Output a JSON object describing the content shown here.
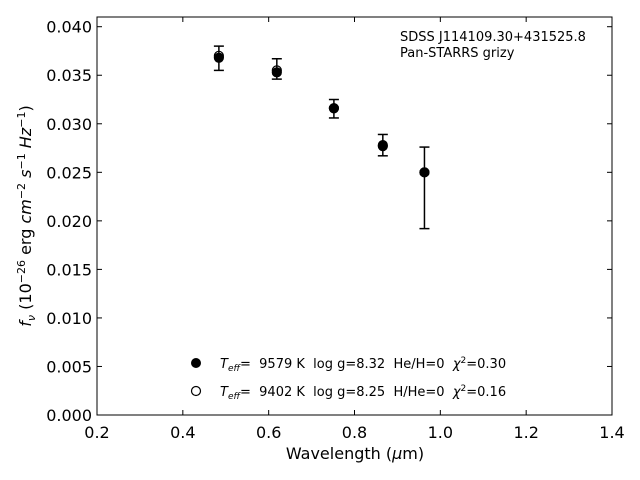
{
  "chart_data": {
    "type": "scatter",
    "annotation": [
      "SDSS J114109.30+431525.8",
      "Pan-STARRS grizy"
    ],
    "xlabel": "Wavelength (μm)",
    "ylabel": "fν (10⁻²⁶ erg cm⁻² s⁻¹ Hz⁻¹)",
    "xlim": [
      0.2,
      1.4
    ],
    "ylim": [
      0.0,
      0.041
    ],
    "xticks": [
      "0.2",
      "0.4",
      "0.6",
      "0.8",
      "1.0",
      "1.2",
      "1.4"
    ],
    "yticks": [
      "0.000",
      "0.005",
      "0.010",
      "0.015",
      "0.020",
      "0.025",
      "0.030",
      "0.035",
      "0.040"
    ],
    "grid": false,
    "legend_position": "bottom-center",
    "observed": {
      "x": [
        0.484,
        0.619,
        0.752,
        0.866,
        0.963
      ],
      "y": [
        0.0369,
        0.0355,
        0.0316,
        0.0278,
        0.025
      ],
      "yerr_low": [
        0.0355,
        0.0346,
        0.0306,
        0.0267,
        0.0192
      ],
      "yerr_high": [
        0.038,
        0.0367,
        0.0325,
        0.0289,
        0.0276
      ]
    },
    "series": [
      {
        "marker": "filled",
        "label": "T_eff=  9579 K  log g=8.32  He/H=0  χ²=0.30",
        "x": [
          0.484,
          0.619,
          0.752,
          0.866,
          0.963
        ],
        "y": [
          0.0368,
          0.0353,
          0.0316,
          0.0277,
          0.025
        ]
      },
      {
        "marker": "open",
        "label": "T_eff=  9402 K  log g=8.25  H/He=0  χ²=0.16",
        "x": [
          0.484,
          0.619,
          0.752,
          0.866,
          0.963
        ],
        "y": [
          0.037,
          0.0355,
          0.0316,
          0.0278,
          0.025
        ]
      }
    ]
  }
}
